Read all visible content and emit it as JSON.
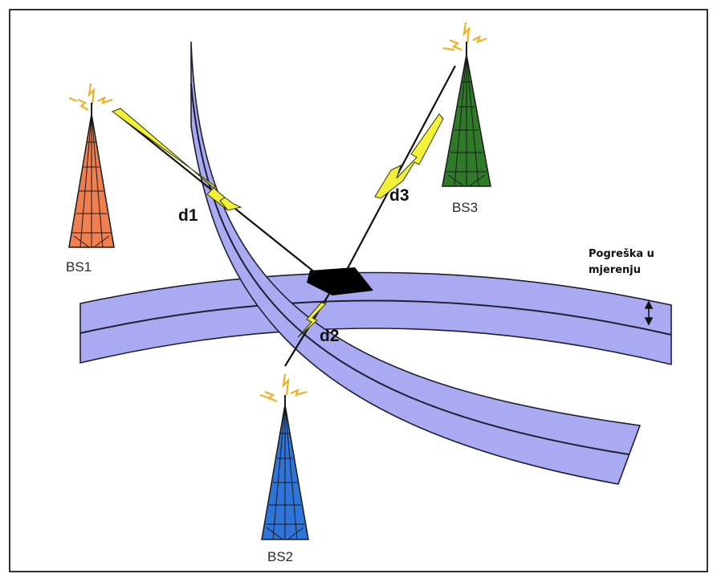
{
  "colors": {
    "frame": "#000000",
    "band_fill": "#aaaaf2",
    "band_stroke": "#1f1f33",
    "intersection": "#000000",
    "signal_line": "#111111",
    "lightning_fill": "#f3f03a",
    "lightning_stroke": "#333300",
    "bs1_tower": "#f07f4f",
    "bs2_tower": "#2f74d8",
    "bs3_tower": "#2f7a28",
    "tower_lattice": "#1a1a1a",
    "antenna_spark": "#f0b020"
  },
  "stations": [
    {
      "id": "bs1",
      "label": "BS1"
    },
    {
      "id": "bs2",
      "label": "BS2"
    },
    {
      "id": "bs3",
      "label": "BS3"
    }
  ],
  "distances": [
    {
      "id": "d1",
      "label": "d1"
    },
    {
      "id": "d2",
      "label": "d2"
    },
    {
      "id": "d3",
      "label": "d3"
    }
  ],
  "error_annotation": {
    "line1": "Pogreška u",
    "line2": "mjerenju",
    "icon": "double-arrow-vertical-icon"
  }
}
